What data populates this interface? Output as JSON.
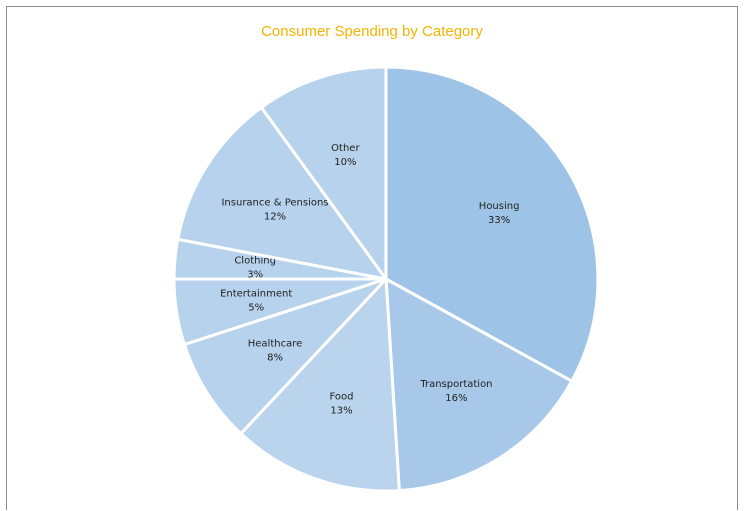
{
  "chart_data": {
    "type": "pie",
    "title": "Consumer Spending by Category",
    "start_angle_deg": 0,
    "direction": "clockwise",
    "slices": [
      {
        "name": "Housing",
        "value": 33,
        "label": "33%",
        "color": "#9dc3e6"
      },
      {
        "name": "Transportation",
        "value": 16,
        "label": "16%",
        "color": "#a7c8e8"
      },
      {
        "name": "Food",
        "value": 13,
        "label": "13%",
        "color": "#bad4ee"
      },
      {
        "name": "Healthcare",
        "value": 8,
        "label": "8%",
        "color": "#b7d2ec"
      },
      {
        "name": "Entertainment",
        "value": 5,
        "label": "5%",
        "color": "#b7d2ec"
      },
      {
        "name": "Clothing",
        "value": 3,
        "label": "3%",
        "color": "#b7d2ec"
      },
      {
        "name": "Insurance & Pensions",
        "value": 12,
        "label": "12%",
        "color": "#b7d2ec"
      },
      {
        "name": "Other",
        "value": 10,
        "label": "10%",
        "color": "#b7d2ec"
      }
    ]
  }
}
